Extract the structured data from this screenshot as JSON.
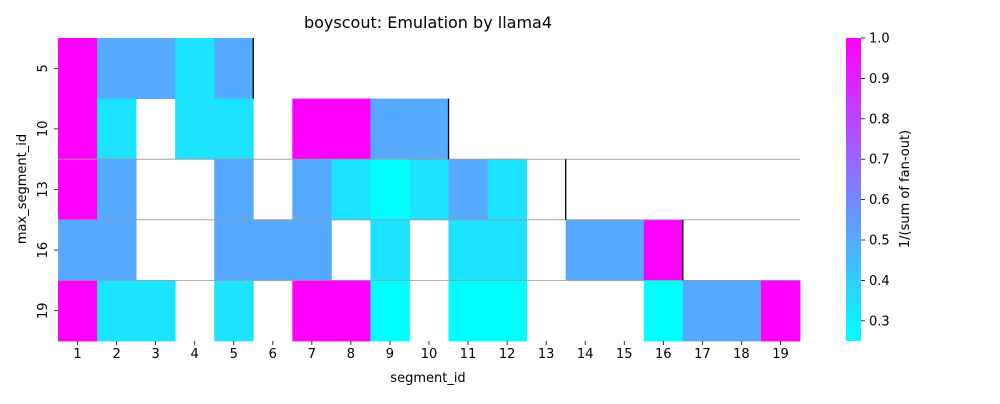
{
  "chart_data": {
    "type": "heatmap",
    "title": "boyscout: Emulation by llama4",
    "xlabel": "segment_id",
    "ylabel": "max_segment_id",
    "x": [
      "1",
      "2",
      "3",
      "4",
      "5",
      "6",
      "7",
      "8",
      "9",
      "10",
      "11",
      "12",
      "13",
      "14",
      "15",
      "16",
      "17",
      "18",
      "19"
    ],
    "y": [
      "5",
      "10",
      "13",
      "16",
      "19"
    ],
    "values": [
      [
        1.0,
        0.5,
        0.5,
        0.333,
        0.5,
        null,
        null,
        null,
        null,
        null,
        null,
        null,
        null,
        null,
        null,
        null,
        null,
        null,
        null
      ],
      [
        1.0,
        0.333,
        null,
        0.333,
        0.333,
        null,
        1.0,
        1.0,
        0.5,
        0.5,
        null,
        null,
        null,
        null,
        null,
        null,
        null,
        null,
        null
      ],
      [
        1.0,
        0.5,
        null,
        null,
        0.5,
        null,
        0.5,
        0.333,
        0.25,
        0.333,
        0.5,
        0.333,
        null,
        null,
        null,
        null,
        null,
        null,
        null
      ],
      [
        0.5,
        0.5,
        null,
        null,
        0.5,
        0.5,
        0.5,
        null,
        0.333,
        null,
        0.333,
        0.333,
        null,
        0.5,
        0.5,
        1.0,
        null,
        null,
        null
      ],
      [
        1.0,
        0.333,
        0.333,
        null,
        0.333,
        null,
        1.0,
        1.0,
        0.25,
        null,
        0.25,
        0.25,
        null,
        null,
        null,
        0.25,
        0.5,
        0.5,
        1.0
      ]
    ],
    "colorbar": {
      "label": "1/(sum of fan-out)",
      "min": 0.25,
      "max": 1.0,
      "ticks": [
        "0.3",
        "0.4",
        "0.5",
        "0.6",
        "0.7",
        "0.8",
        "0.9",
        "1.0"
      ],
      "colormap": "cool",
      "low_color": "#00ffff",
      "high_color": "#ff00ff"
    },
    "segment_end_markers": [
      5,
      10,
      13,
      16
    ],
    "grid": false
  }
}
